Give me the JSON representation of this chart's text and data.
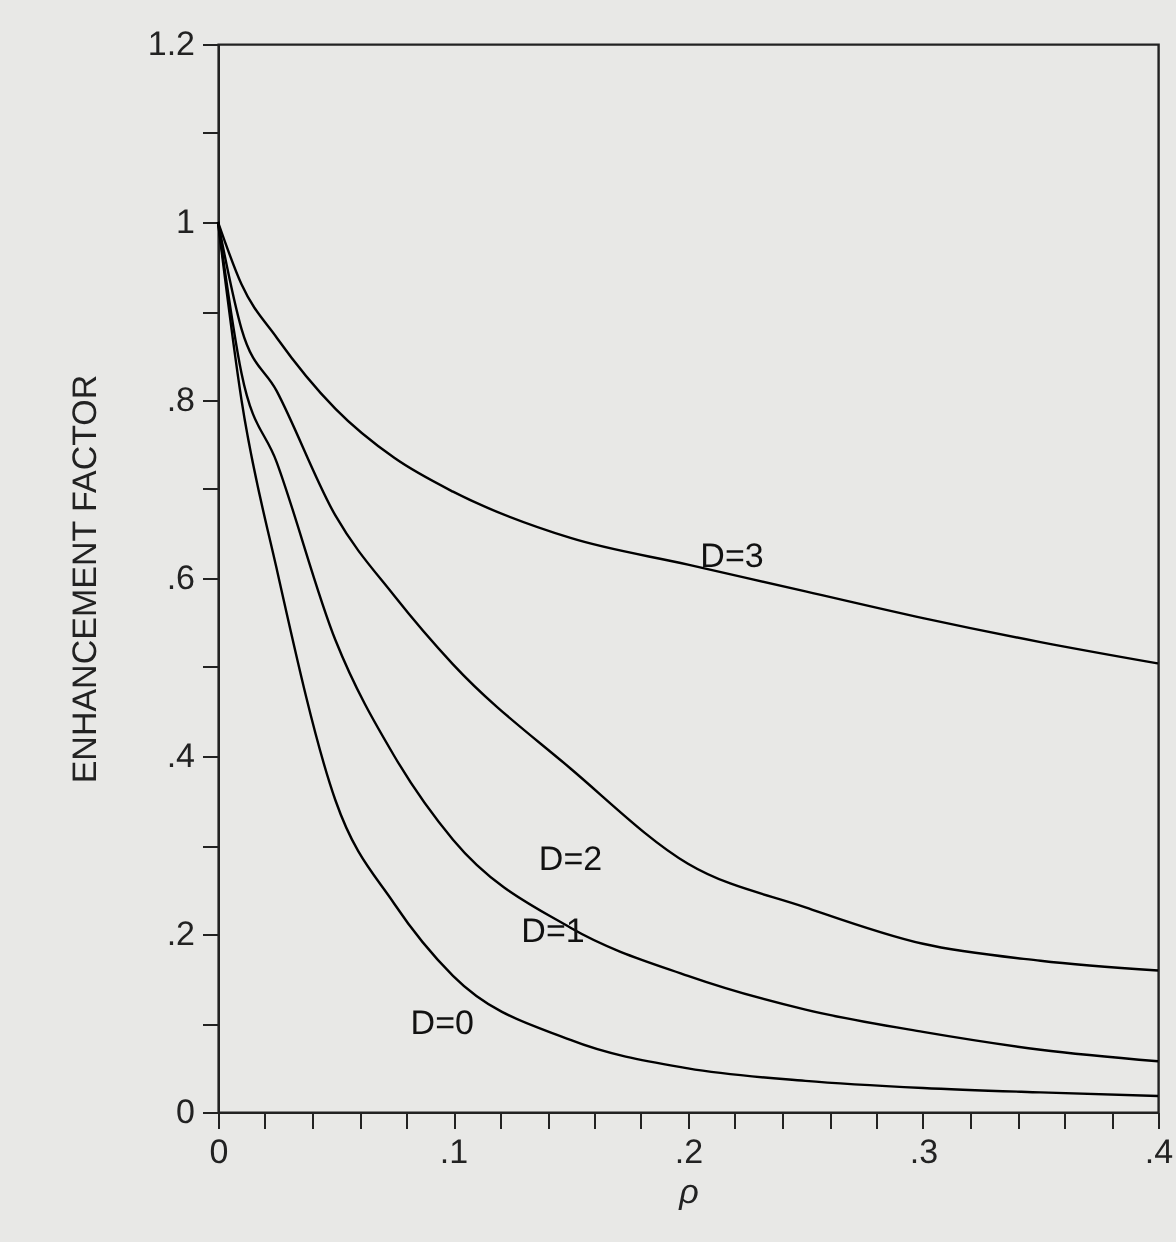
{
  "chart_data": {
    "type": "line",
    "xlabel": "ρ",
    "ylabel": "ENHANCEMENT FACTOR",
    "x": [
      0,
      0.01,
      0.025,
      0.05,
      0.075,
      0.1,
      0.15,
      0.2,
      0.25,
      0.3,
      0.35,
      0.4
    ],
    "series": [
      {
        "name": "D=3",
        "color": "#000000",
        "values": [
          1,
          0.93,
          0.87,
          0.79,
          0.735,
          0.697,
          0.645,
          0.615,
          0.585,
          0.555,
          0.528,
          0.504
        ]
      },
      {
        "name": "D=2",
        "color": "#000000",
        "values": [
          1,
          0.88,
          0.81,
          0.67,
          0.58,
          0.503,
          0.386,
          0.279,
          0.23,
          0.189,
          0.17,
          0.159
        ]
      },
      {
        "name": "D=1",
        "color": "#000000",
        "values": [
          1,
          0.83,
          0.73,
          0.53,
          0.4,
          0.306,
          0.207,
          0.153,
          0.115,
          0.09,
          0.07,
          0.057
        ]
      },
      {
        "name": "D=0",
        "color": "#000000",
        "values": [
          1,
          0.8,
          0.61,
          0.35,
          0.234,
          0.153,
          0.081,
          0.049,
          0.035,
          0.027,
          0.022,
          0.018
        ]
      }
    ],
    "xlim": [
      0,
      0.4
    ],
    "xticks": [
      0,
      {
        "value": 0.02,
        "label": null
      },
      {
        "value": 0.04,
        "label": null
      },
      {
        "value": 0.06,
        "label": null
      },
      {
        "value": 0.08,
        "label": null
      },
      {
        "value": 0.1,
        "label": ".1"
      },
      {
        "value": 0.12,
        "label": null
      },
      {
        "value": 0.14,
        "label": null
      },
      {
        "value": 0.16,
        "label": null
      },
      {
        "value": 0.18,
        "label": null
      },
      {
        "value": 0.2,
        "label": ".2"
      },
      {
        "value": 0.22,
        "label": null
      },
      {
        "value": 0.24,
        "label": null
      },
      {
        "value": 0.26,
        "label": null
      },
      {
        "value": 0.28,
        "label": null
      },
      {
        "value": 0.3,
        "label": ".3"
      },
      {
        "value": 0.32,
        "label": null
      },
      {
        "value": 0.34,
        "label": null
      },
      {
        "value": 0.36,
        "label": null
      },
      {
        "value": 0.38,
        "label": null
      },
      {
        "value": 0.4,
        "label": ".4"
      }
    ],
    "ylim": [
      0,
      1.2
    ],
    "yticks": [
      0,
      {
        "value": 0.1,
        "label": null
      },
      {
        "value": 0.2,
        "label": ".2"
      },
      {
        "value": 0.3,
        "label": null
      },
      {
        "value": 0.4,
        "label": ".4"
      },
      {
        "value": 0.5,
        "label": null
      },
      {
        "value": 0.6,
        "label": ".6"
      },
      {
        "value": 0.7,
        "label": null
      },
      {
        "value": 0.8,
        "label": ".8"
      },
      {
        "value": 0.9,
        "label": null
      },
      1,
      {
        "value": 1.1,
        "label": null
      },
      1.2
    ],
    "grid": false,
    "legend": false,
    "marker": "none",
    "line_style": "solid"
  }
}
